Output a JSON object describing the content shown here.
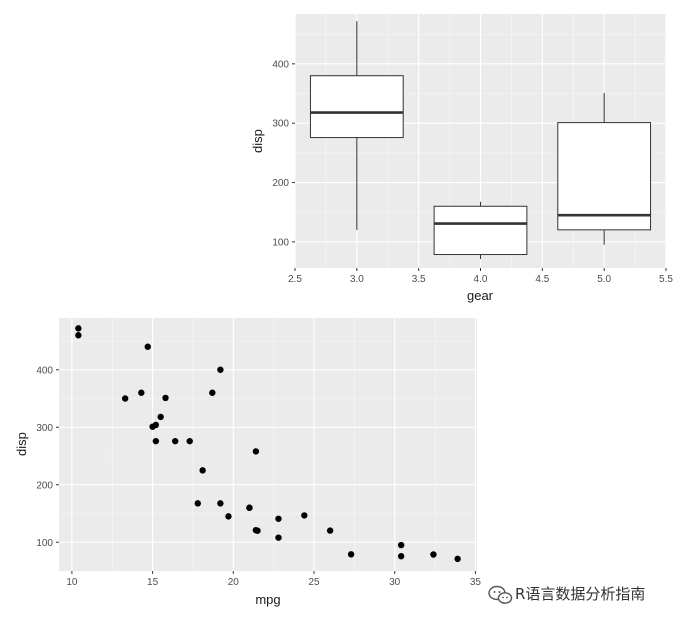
{
  "chart_data": [
    {
      "type": "box",
      "xlabel": "gear",
      "ylabel": "disp",
      "xlim": [
        2.5,
        5.5
      ],
      "ylim": [
        56,
        484
      ],
      "x_ticks": [
        "2.5",
        "3.0",
        "3.5",
        "4.0",
        "4.5",
        "5.0",
        "5.5"
      ],
      "y_ticks": [
        "100",
        "200",
        "300",
        "400"
      ],
      "grid": true,
      "boxes": [
        {
          "x": 3,
          "lower_whisker": 120.1,
          "q1": 275.8,
          "median": 318.0,
          "q3": 380.0,
          "upper_whisker": 472.0
        },
        {
          "x": 4,
          "lower_whisker": 71.1,
          "q1": 78.7,
          "median": 130.9,
          "q3": 160.0,
          "upper_whisker": 167.6
        },
        {
          "x": 5,
          "lower_whisker": 95.1,
          "q1": 120.3,
          "median": 145.0,
          "q3": 301.0,
          "upper_whisker": 351.0
        }
      ]
    },
    {
      "type": "scatter",
      "xlabel": "mpg",
      "ylabel": "disp",
      "xlim": [
        9.2,
        35.1
      ],
      "ylim": [
        50,
        490
      ],
      "x_ticks": [
        "10",
        "15",
        "20",
        "25",
        "30",
        "35"
      ],
      "y_ticks": [
        "100",
        "200",
        "300",
        "400"
      ],
      "grid": true,
      "points": [
        [
          21.0,
          160.0
        ],
        [
          21.0,
          160.0
        ],
        [
          22.8,
          108.0
        ],
        [
          21.4,
          258.0
        ],
        [
          18.7,
          360.0
        ],
        [
          18.1,
          225.0
        ],
        [
          14.3,
          360.0
        ],
        [
          24.4,
          146.7
        ],
        [
          22.8,
          140.8
        ],
        [
          19.2,
          167.6
        ],
        [
          17.8,
          167.6
        ],
        [
          16.4,
          275.8
        ],
        [
          17.3,
          275.8
        ],
        [
          15.2,
          275.8
        ],
        [
          10.4,
          472.0
        ],
        [
          10.4,
          460.0
        ],
        [
          14.7,
          440.0
        ],
        [
          32.4,
          78.7
        ],
        [
          30.4,
          75.7
        ],
        [
          33.9,
          71.1
        ],
        [
          21.5,
          120.1
        ],
        [
          15.5,
          318.0
        ],
        [
          15.2,
          304.0
        ],
        [
          13.3,
          350.0
        ],
        [
          19.2,
          400.0
        ],
        [
          27.3,
          79.0
        ],
        [
          26.0,
          120.3
        ],
        [
          30.4,
          95.1
        ],
        [
          15.8,
          351.0
        ],
        [
          19.7,
          145.0
        ],
        [
          15.0,
          301.0
        ],
        [
          21.4,
          121.0
        ]
      ]
    }
  ],
  "watermark": {
    "text": "R语言数据分析指南",
    "icon": "wechat-icon"
  },
  "colors": {
    "panel": "#ebebeb",
    "grid": "#ffffff",
    "ink": "#000000",
    "median": "#333333"
  }
}
